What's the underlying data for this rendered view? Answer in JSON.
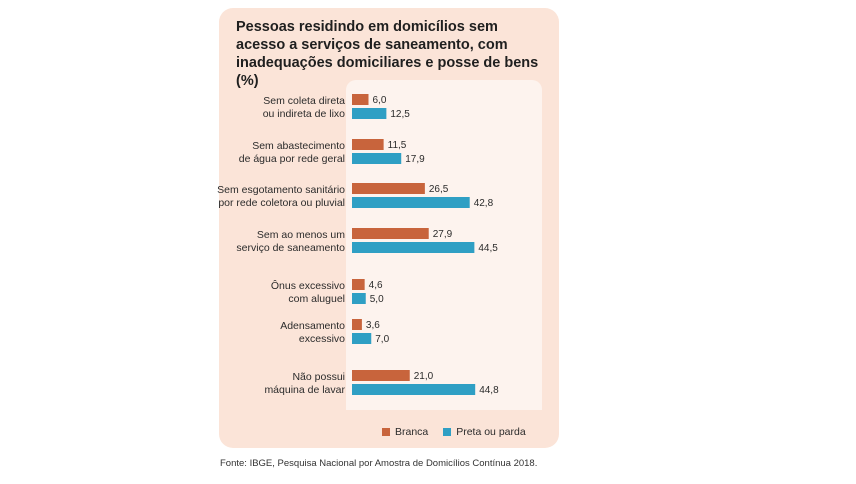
{
  "figure": {
    "title": "Pessoas residindo em domicílios sem acesso a serviços de saneamento, com inadequações domiciliares e posse de bens (%)",
    "source": "Fonte: IBGE, Pesquisa Nacional por Amostra de Domicílios Contínua 2018."
  },
  "chart_data": {
    "type": "bar",
    "orientation": "horizontal",
    "title": "Pessoas residindo em domicílios sem acesso a serviços de saneamento, com inadequações domiciliares e posse de bens (%)",
    "categories": [
      [
        "Sem coleta direta",
        "ou indireta de lixo"
      ],
      [
        "Sem abastecimento",
        "de água por rede geral"
      ],
      [
        "Sem esgotamento sanitário",
        "por rede coletora ou pluvial"
      ],
      [
        "Sem ao menos um",
        "serviço de saneamento"
      ],
      [
        "Ônus excessivo",
        "com aluguel"
      ],
      [
        "Adensamento",
        "excessivo"
      ],
      [
        "Não possui",
        "máquina de lavar"
      ]
    ],
    "series": [
      {
        "name": "Branca",
        "color": "#c8643c",
        "values": [
          6.0,
          11.5,
          26.5,
          27.9,
          4.6,
          3.6,
          21.0
        ]
      },
      {
        "name": "Preta ou parda",
        "color": "#2f9fc4",
        "values": [
          12.5,
          17.9,
          42.8,
          44.5,
          5.0,
          7.0,
          44.8
        ]
      }
    ],
    "value_labels": [
      [
        "6,0",
        "11,5",
        "26,5",
        "27,9",
        "4,6",
        "3,6",
        "21,0"
      ],
      [
        "12,5",
        "17,9",
        "42,8",
        "44,5",
        "5,0",
        "7,0",
        "44,8"
      ]
    ],
    "legend_position": "bottom-right",
    "grid": false
  }
}
